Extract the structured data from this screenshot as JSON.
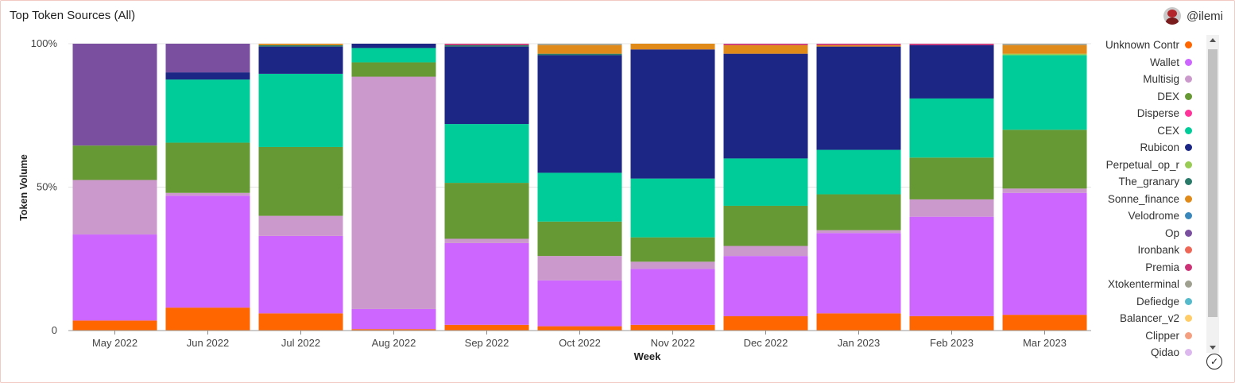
{
  "header": {
    "title": "Top Token Sources (All)",
    "author": "@ilemi"
  },
  "colors": {
    "Unknown Contr": "#ff6600",
    "Wallet": "#cc66ff",
    "Multisig": "#cc99cc",
    "DEX": "#669933",
    "Disperse": "#ff3399",
    "CEX": "#00cc99",
    "Rubicon": "#1b2685",
    "Perpetual_op_r": "#99cc55",
    "The_granary": "#2a7a6a",
    "Sonne_finance": "#e08a1a",
    "Velodrome": "#3a88bb",
    "Op": "#7b4fa0",
    "Ironbank": "#ee6655",
    "Premia": "#cc3377",
    "Xtokenterminal": "#a0a090",
    "Defiedge": "#55bbcc",
    "Balancer_v2": "#ffcc66",
    "Clipper": "#f4a080",
    "Qidao": "#dcb8ee"
  },
  "legend": {
    "items": [
      "Unknown Contr",
      "Wallet",
      "Multisig",
      "DEX",
      "Disperse",
      "CEX",
      "Rubicon",
      "Perpetual_op_r",
      "The_granary",
      "Sonne_finance",
      "Velodrome",
      "Op",
      "Ironbank",
      "Premia",
      "Xtokenterminal",
      "Defiedge",
      "Balancer_v2",
      "Clipper",
      "Qidao"
    ]
  },
  "chart_data": {
    "type": "bar",
    "stacked": "percent",
    "xlabel": "Week",
    "ylabel": "Token Volume",
    "yticks": [
      "0",
      "50%",
      "100%"
    ],
    "ylim": [
      0,
      100
    ],
    "grid": true,
    "legend_position": "right",
    "categories": [
      "May 2022",
      "Jun 2022",
      "Jul 2022",
      "Aug 2022",
      "Sep 2022",
      "Oct 2022",
      "Nov 2022",
      "Dec 2022",
      "Jan 2023",
      "Feb 2023",
      "Mar 2023"
    ],
    "series": [
      {
        "name": "Unknown Contr",
        "values": [
          3.5,
          8,
          6,
          0.5,
          2,
          1.5,
          2,
          5,
          6,
          5,
          5.5
        ]
      },
      {
        "name": "Wallet",
        "values": [
          30,
          39,
          27,
          7,
          28.5,
          16,
          19.5,
          21,
          28,
          34.5,
          42.5
        ]
      },
      {
        "name": "Multisig",
        "values": [
          19,
          1,
          7,
          81,
          1.5,
          8.5,
          2.5,
          3.5,
          1,
          6,
          1.5
        ]
      },
      {
        "name": "DEX",
        "values": [
          12,
          17.5,
          24,
          5,
          19.5,
          12,
          8.5,
          14,
          12.5,
          14.5,
          20.5
        ]
      },
      {
        "name": "CEX",
        "values": [
          0,
          22,
          25.5,
          5,
          20.5,
          17,
          20.5,
          16.5,
          15.5,
          20.5,
          26
        ]
      },
      {
        "name": "Rubicon",
        "values": [
          0,
          2.5,
          9.5,
          1.5,
          27,
          41,
          45,
          36.5,
          36,
          18.5,
          0
        ]
      },
      {
        "name": "Perpetual_op_r",
        "values": [
          0,
          0,
          0,
          0,
          0,
          0,
          0,
          0,
          0,
          0,
          0.5
        ]
      },
      {
        "name": "The_granary",
        "values": [
          0,
          0,
          0.5,
          0,
          0.5,
          0.5,
          0,
          0,
          0,
          0,
          0
        ]
      },
      {
        "name": "Sonne_finance",
        "values": [
          0,
          0,
          0.5,
          0,
          0,
          3,
          2,
          3,
          0.5,
          0,
          3
        ]
      },
      {
        "name": "Op",
        "values": [
          35.5,
          10,
          0,
          0,
          0,
          0,
          0,
          0,
          0,
          0,
          0
        ]
      },
      {
        "name": "Premia",
        "values": [
          0,
          0,
          0,
          0,
          0.5,
          0,
          0,
          0.5,
          0.5,
          0.5,
          0
        ]
      },
      {
        "name": "Xtokenterminal",
        "values": [
          0,
          0,
          0,
          0,
          0,
          0.5,
          0,
          0,
          0,
          0,
          0.5
        ]
      }
    ]
  }
}
